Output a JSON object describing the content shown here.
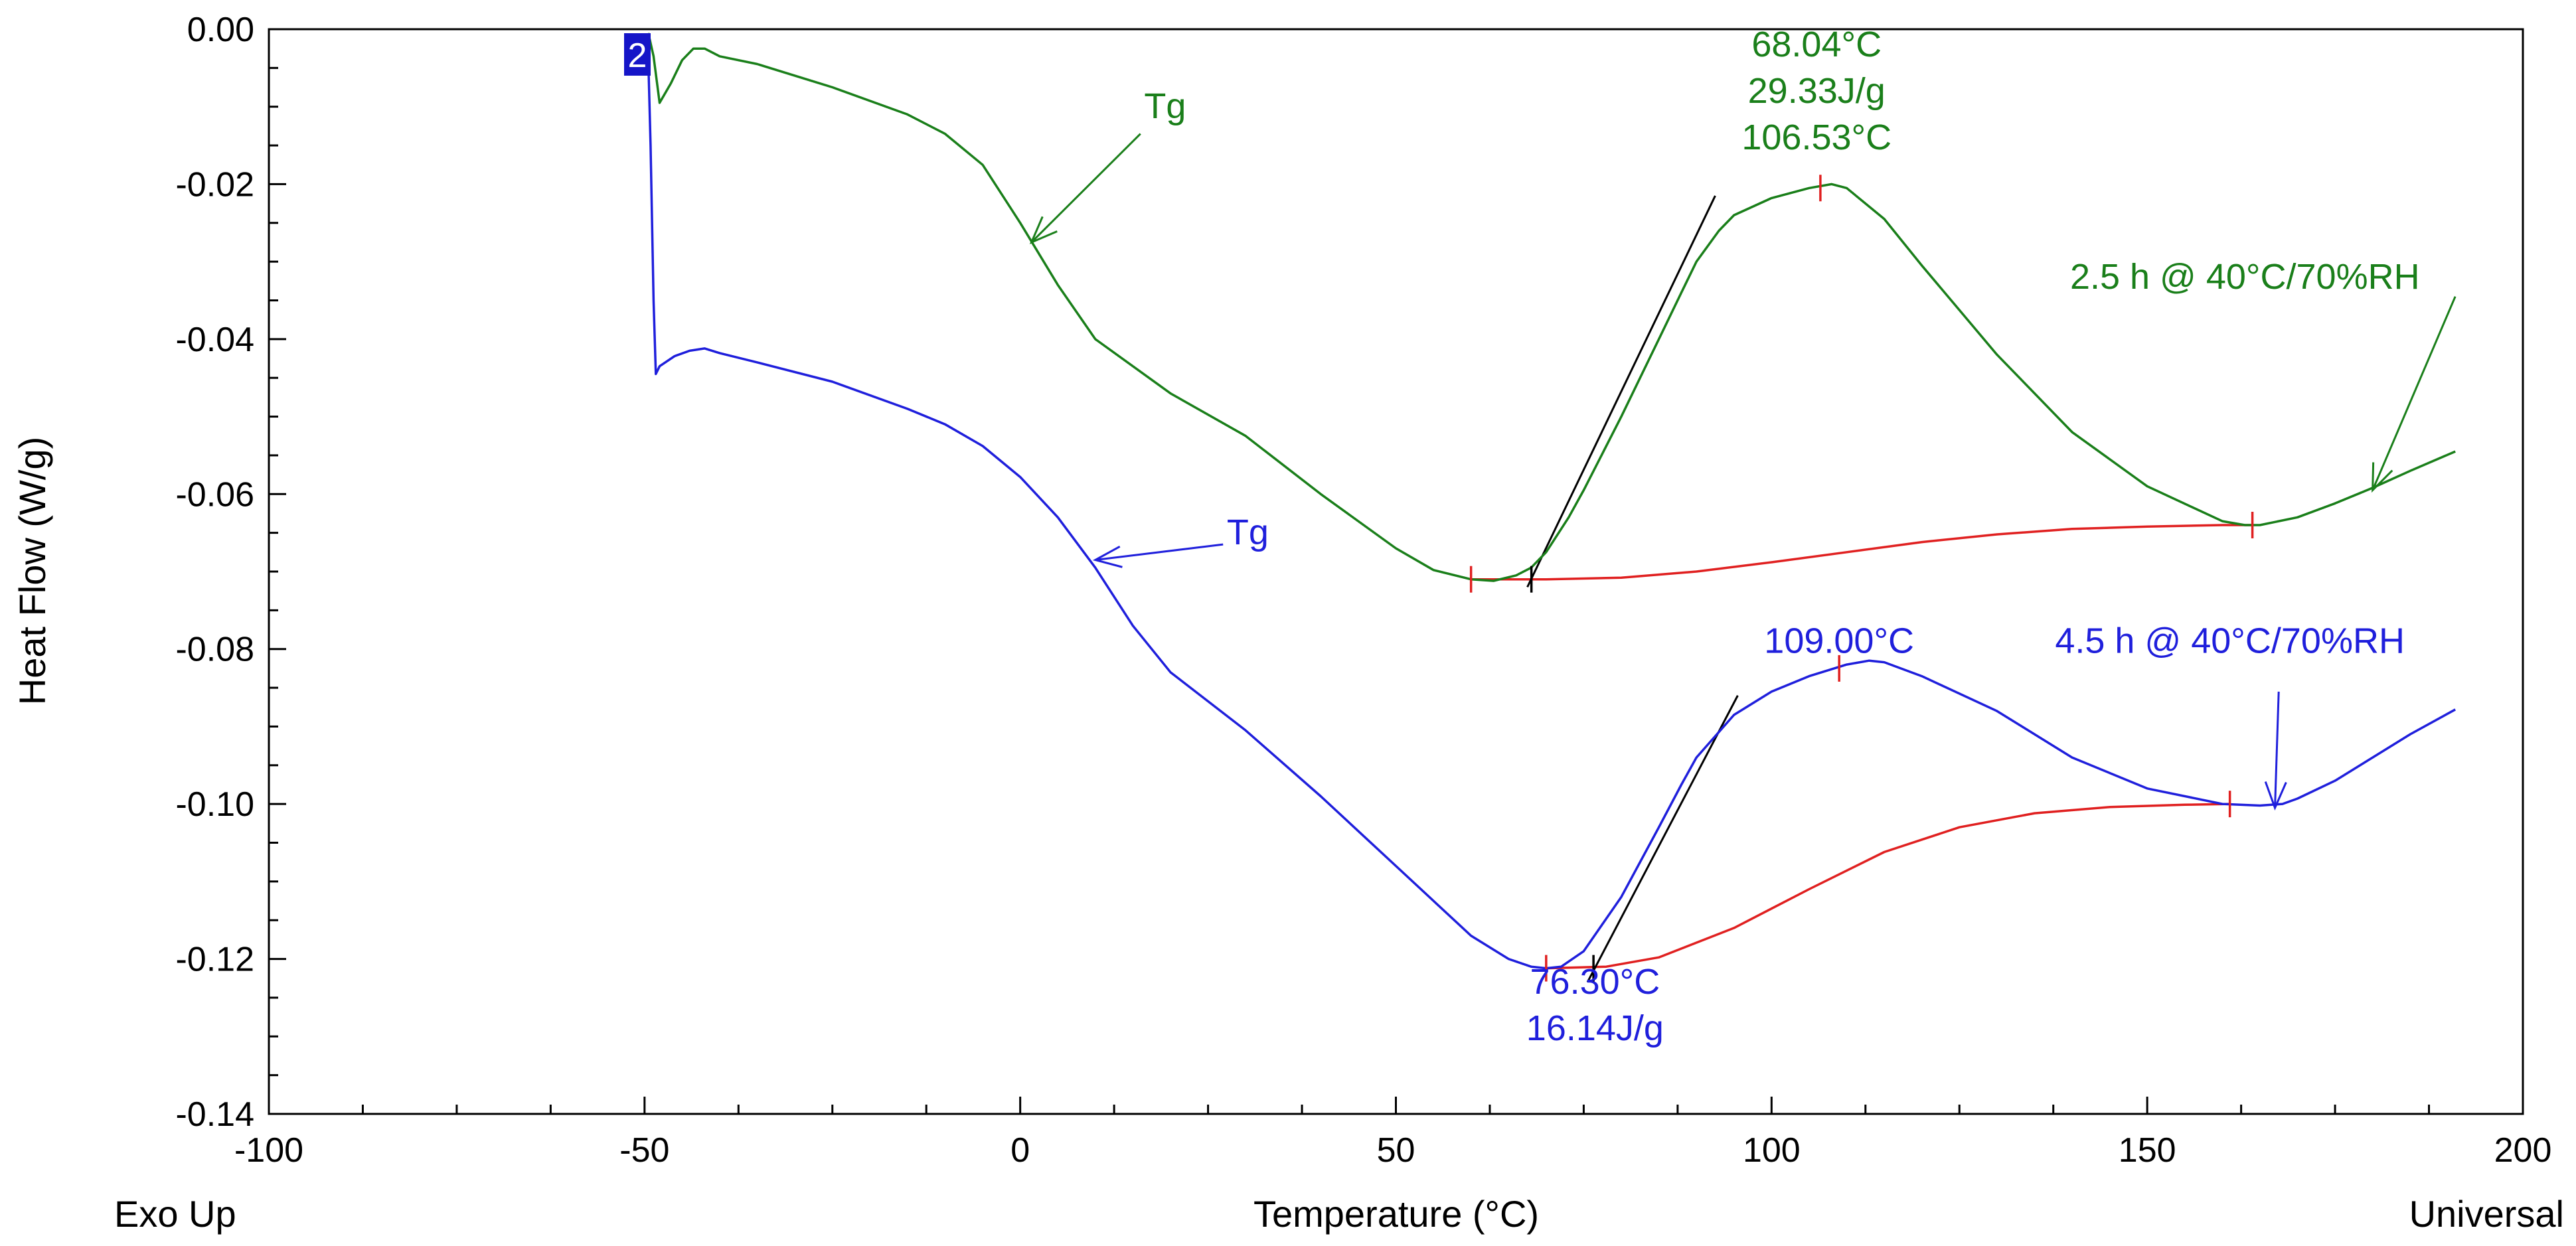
{
  "chart_data": {
    "type": "line",
    "title": "",
    "xlabel": "Temperature (°C)",
    "ylabel": "Heat Flow (W/g)",
    "corner_left": "Exo Up",
    "corner_right": "Universal",
    "xlim": [
      -100,
      200
    ],
    "ylim": [
      -0.14,
      0.0
    ],
    "x_ticks": [
      -100,
      -50,
      0,
      50,
      100,
      150,
      200
    ],
    "y_ticks": [
      0.0,
      -0.02,
      -0.04,
      -0.06,
      -0.08,
      -0.1,
      -0.12,
      -0.14
    ],
    "x_tick_labels": [
      "-100",
      "-50",
      "0",
      "50",
      "100",
      "150",
      "200"
    ],
    "y_tick_labels": [
      "0.00",
      "-0.02",
      "-0.04",
      "-0.06",
      "-0.08",
      "-0.10",
      "-0.12",
      "-0.14"
    ],
    "marker_label": "2",
    "colors": {
      "green": "#1a7f1a",
      "blue": "#1f1fdc",
      "red": "#e02020",
      "tangent": "#000000",
      "marker_bg": "#1515c8"
    },
    "series": [
      {
        "name": "2.5 h @ 40°C/70%RH",
        "color": "#1a7f1a",
        "x": [
          -49.5,
          -48.8,
          -48,
          -46.5,
          -45,
          -43.5,
          -42,
          -40,
          -35,
          -25,
          -15,
          -10,
          -5,
          0,
          5,
          10,
          20,
          30,
          40,
          50,
          55,
          60,
          63,
          66,
          68,
          70,
          73,
          75,
          80,
          85,
          88,
          90,
          93,
          95,
          100,
          105,
          108,
          110,
          115,
          120,
          130,
          140,
          150,
          160,
          163,
          165,
          170,
          175,
          180,
          185,
          191
        ],
        "y": [
          -0.0005,
          -0.0035,
          -0.0095,
          -0.007,
          -0.004,
          -0.0025,
          -0.0025,
          -0.0035,
          -0.0045,
          -0.0075,
          -0.011,
          -0.0135,
          -0.0175,
          -0.025,
          -0.033,
          -0.04,
          -0.047,
          -0.0525,
          -0.06,
          -0.067,
          -0.0698,
          -0.071,
          -0.0712,
          -0.0705,
          -0.0695,
          -0.0675,
          -0.063,
          -0.0595,
          -0.05,
          -0.04,
          -0.034,
          -0.03,
          -0.026,
          -0.024,
          -0.0218,
          -0.0205,
          -0.02,
          -0.0205,
          -0.0245,
          -0.0305,
          -0.042,
          -0.052,
          -0.059,
          -0.0635,
          -0.064,
          -0.064,
          -0.063,
          -0.0612,
          -0.0592,
          -0.057,
          -0.0545
        ]
      },
      {
        "name": "4.5 h @ 40°C/70%RH",
        "color": "#1f1fdc",
        "x": [
          -49.8,
          -49.5,
          -49.2,
          -48.8,
          -48.5,
          -48,
          -46,
          -44,
          -42,
          -40,
          -35,
          -25,
          -15,
          -10,
          -5,
          0,
          5,
          10,
          15,
          20,
          30,
          40,
          50,
          60,
          65,
          68,
          70,
          72,
          75,
          80,
          85,
          88,
          90,
          95,
          100,
          105,
          110,
          113,
          115,
          120,
          130,
          140,
          150,
          160,
          165,
          168,
          170,
          175,
          180,
          185,
          191
        ],
        "y": [
          -0.001,
          -0.004,
          -0.015,
          -0.035,
          -0.0445,
          -0.0435,
          -0.0422,
          -0.0415,
          -0.0412,
          -0.0418,
          -0.043,
          -0.0455,
          -0.049,
          -0.051,
          -0.0538,
          -0.0578,
          -0.063,
          -0.0695,
          -0.077,
          -0.083,
          -0.0905,
          -0.099,
          -0.108,
          -0.117,
          -0.12,
          -0.121,
          -0.1212,
          -0.121,
          -0.119,
          -0.112,
          -0.103,
          -0.0975,
          -0.094,
          -0.0885,
          -0.0855,
          -0.0835,
          -0.082,
          -0.0815,
          -0.0817,
          -0.0835,
          -0.088,
          -0.094,
          -0.098,
          -0.1,
          -0.1002,
          -0.1,
          -0.0993,
          -0.097,
          -0.094,
          -0.091,
          -0.0878
        ]
      }
    ],
    "baselines": [
      {
        "name": "green integration baseline",
        "color": "#e02020",
        "x": [
          60,
          70,
          80,
          90,
          100,
          110,
          120,
          130,
          140,
          150,
          160,
          164
        ],
        "y": [
          -0.071,
          -0.071,
          -0.0708,
          -0.07,
          -0.0688,
          -0.0675,
          -0.0662,
          -0.0652,
          -0.0645,
          -0.0642,
          -0.064,
          -0.064
        ]
      },
      {
        "name": "blue integration baseline",
        "color": "#e02020",
        "x": [
          70,
          78,
          85,
          95,
          105,
          115,
          125,
          135,
          145,
          155,
          161
        ],
        "y": [
          -0.1212,
          -0.121,
          -0.1198,
          -0.116,
          -0.111,
          -0.1062,
          -0.103,
          -0.1012,
          -0.1004,
          -0.1001,
          -0.1
        ]
      }
    ],
    "tangents": [
      {
        "x": [
          67.5,
          92.5
        ],
        "y": [
          -0.072,
          -0.0215
        ]
      },
      {
        "x": [
          75.5,
          95.5
        ],
        "y": [
          -0.123,
          -0.086
        ]
      }
    ],
    "red_markers": [
      {
        "x": 60,
        "y": -0.071
      },
      {
        "x": 106.5,
        "y": -0.0205
      },
      {
        "x": 164,
        "y": -0.064
      },
      {
        "x": 70,
        "y": -0.1212
      },
      {
        "x": 109,
        "y": -0.0825
      },
      {
        "x": 161,
        "y": -0.1
      }
    ],
    "black_markers": [
      {
        "x": 68.04,
        "y": -0.071
      },
      {
        "x": 76.3,
        "y": -0.1212
      }
    ],
    "annotations": [
      {
        "id": "g-tg",
        "lines": [
          "Tg"
        ],
        "color": "#1a7f1a",
        "x": 16.5,
        "y": -0.0115,
        "anchor": "start",
        "arrow_from": [
          16,
          -0.0135
        ],
        "arrow_to": [
          1.5,
          -0.0275
        ]
      },
      {
        "id": "g-peak",
        "lines": [
          "68.04°C",
          "29.33J/g",
          "106.53°C"
        ],
        "color": "#1a7f1a",
        "x": 106,
        "y": -0.0035,
        "anchor": "middle"
      },
      {
        "id": "g-cond",
        "lines": [
          "2.5 h @ 40°C/70%RH"
        ],
        "color": "#1a7f1a",
        "x": 163,
        "y": -0.0335,
        "anchor": "middle",
        "arrow_from": [
          191,
          -0.0345
        ],
        "arrow_to": [
          180,
          -0.0595
        ]
      },
      {
        "id": "b-tg",
        "lines": [
          "Tg"
        ],
        "color": "#1f1fdc",
        "x": 27.5,
        "y": -0.0665,
        "anchor": "start",
        "arrow_from": [
          27,
          -0.0665
        ],
        "arrow_to": [
          10,
          -0.0685
        ]
      },
      {
        "id": "b-peak",
        "lines": [
          "109.00°C"
        ],
        "color": "#1f1fdc",
        "x": 109,
        "y": -0.0805,
        "anchor": "middle"
      },
      {
        "id": "b-cond",
        "lines": [
          "4.5 h @ 40°C/70%RH"
        ],
        "color": "#1f1fdc",
        "x": 161,
        "y": -0.0805,
        "anchor": "middle",
        "arrow_from": [
          167.5,
          -0.0855
        ],
        "arrow_to": [
          167,
          -0.1005
        ]
      },
      {
        "id": "b-enthalpy",
        "lines": [
          "76.30°C",
          "16.14J/g"
        ],
        "color": "#1f1fdc",
        "x": 76.5,
        "y": -0.1245,
        "anchor": "middle"
      }
    ]
  }
}
